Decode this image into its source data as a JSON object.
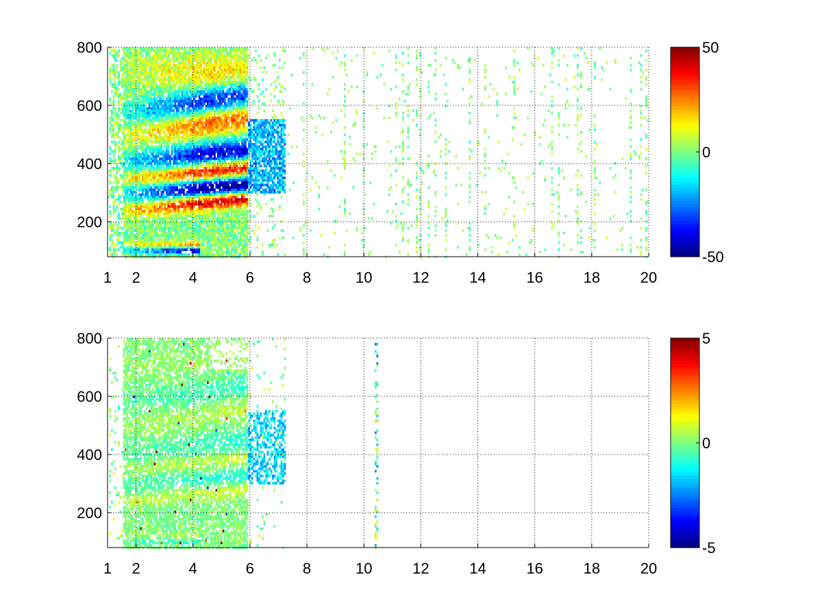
{
  "chart_data": [
    {
      "type": "heatmap",
      "title": "",
      "xlabel": "",
      "ylabel": "",
      "xlim": [
        1,
        20
      ],
      "ylim": [
        80,
        800
      ],
      "x_scale": "linear",
      "y_scale": "linear",
      "x_ticks": [
        1,
        2,
        4,
        6,
        8,
        10,
        12,
        14,
        16,
        18,
        20
      ],
      "x_tick_labels": [
        "1",
        "2",
        "4",
        "6",
        "8",
        "10",
        "12",
        "14",
        "16",
        "18",
        "20"
      ],
      "y_ticks": [
        200,
        400,
        600,
        800
      ],
      "y_tick_labels": [
        "200",
        "400",
        "600",
        "800"
      ],
      "grid": true,
      "grid_style": "dotted",
      "colormap": "jet",
      "color_range": [
        -50,
        50
      ],
      "colorbar_ticks": [
        50,
        0,
        -50
      ],
      "colorbar_tick_labels": [
        "50",
        "0",
        "-50"
      ],
      "colorbar_position": "right",
      "dense_region_x": [
        1,
        7.2
      ],
      "notes_visible_bands": [
        {
          "value": -50,
          "x": [
            2.0,
            5.8
          ],
          "y": [
            240,
            330
          ]
        },
        {
          "value": 45,
          "x": [
            2.0,
            5.8
          ],
          "y": [
            235,
            270
          ]
        },
        {
          "value": -40,
          "x": [
            2.0,
            5.8
          ],
          "y": [
            360,
            430
          ]
        },
        {
          "value": 40,
          "x": [
            2.0,
            5.8
          ],
          "y": [
            330,
            380
          ]
        },
        {
          "value": -35,
          "x": [
            2.5,
            5.8
          ],
          "y": [
            520,
            620
          ]
        },
        {
          "value": 30,
          "x": [
            2.5,
            5.8
          ],
          "y": [
            480,
            560
          ]
        },
        {
          "value": -45,
          "x": [
            1.8,
            4.0
          ],
          "y": [
            95,
            115
          ]
        }
      ]
    },
    {
      "type": "heatmap",
      "title": "",
      "xlabel": "",
      "ylabel": "",
      "xlim": [
        1,
        20
      ],
      "ylim": [
        80,
        800
      ],
      "x_scale": "linear",
      "y_scale": "linear",
      "x_ticks": [
        1,
        2,
        4,
        6,
        8,
        10,
        12,
        14,
        16,
        18,
        20
      ],
      "x_tick_labels": [
        "1",
        "2",
        "4",
        "6",
        "8",
        "10",
        "12",
        "14",
        "16",
        "18",
        "20"
      ],
      "y_ticks": [
        200,
        400,
        600,
        800
      ],
      "y_tick_labels": [
        "200",
        "400",
        "600",
        "800"
      ],
      "grid": true,
      "grid_style": "dotted",
      "colormap": "jet",
      "color_range": [
        -5,
        5
      ],
      "colorbar_ticks": [
        5,
        0,
        -5
      ],
      "colorbar_tick_labels": [
        "5",
        "0",
        "-5"
      ],
      "colorbar_position": "right",
      "dense_region_x": [
        1,
        7.2
      ]
    }
  ]
}
